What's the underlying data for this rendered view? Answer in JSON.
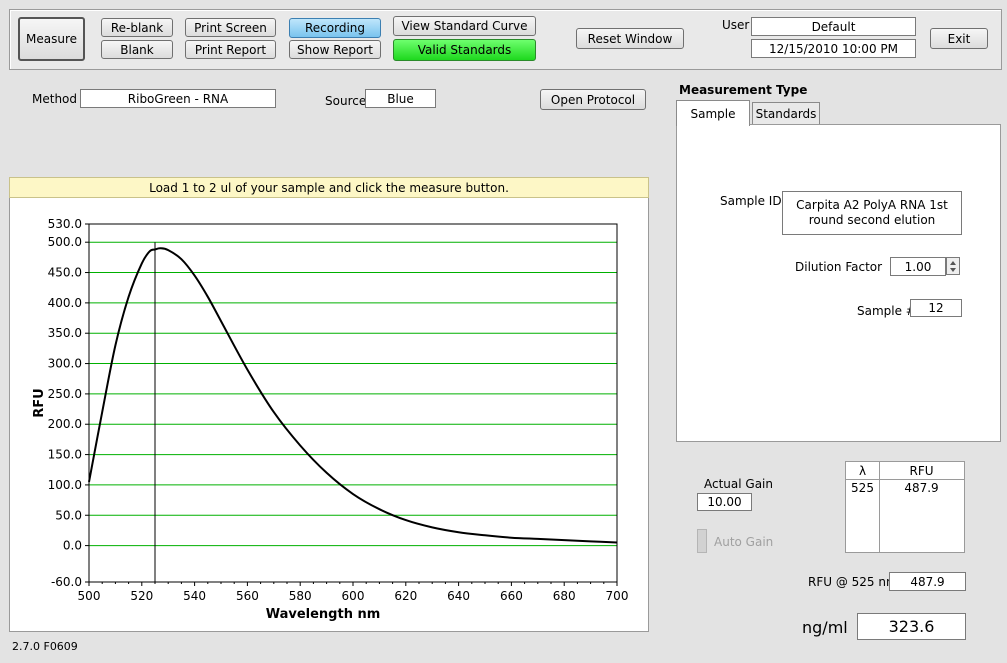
{
  "toolbar": {
    "measure": "Measure",
    "reblank": "Re-blank",
    "blank": "Blank",
    "print_screen": "Print Screen",
    "print_report": "Print Report",
    "recording": "Recording",
    "show_report": "Show Report",
    "view_standard_curve": "View Standard Curve",
    "valid_standards": "Valid Standards",
    "reset_window": "Reset Window",
    "user_label": "User",
    "user_value": "Default",
    "datetime": "12/15/2010  10:00 PM",
    "exit": "Exit"
  },
  "method": {
    "label": "Method",
    "value": "RiboGreen - RNA"
  },
  "source": {
    "label": "Source",
    "value": "Blue"
  },
  "open_protocol": "Open Protocol",
  "banner": "Load 1 to 2 ul of your sample and click the measure button.",
  "measurement_type": {
    "title": "Measurement Type",
    "tabs": [
      "Sample",
      "Standards"
    ],
    "active_tab": "Sample",
    "sample_id_label": "Sample ID",
    "sample_id_value": "Carpita A2 PolyA RNA 1st round second elution",
    "dilution_label": "Dilution Factor",
    "dilution_value": "1.00",
    "sample_no_label": "Sample #",
    "sample_no_value": "12"
  },
  "gain": {
    "actual_label": "Actual Gain",
    "actual_value": "10.00",
    "auto_label": "Auto Gain"
  },
  "rfu_table": {
    "headers": [
      "λ",
      "RFU"
    ],
    "rows": [
      [
        "525",
        "487.9"
      ]
    ]
  },
  "rfu_at": {
    "label": "RFU @ 525 nm",
    "value": "487.9"
  },
  "concentration": {
    "label": "ng/ml",
    "value": "323.6"
  },
  "version": "2.7.0 F0609",
  "colors": {
    "grid": "#00b000",
    "curve": "#000000",
    "valid_green": "#22dd22"
  },
  "chart_data": {
    "type": "line",
    "xlabel": "Wavelength  nm",
    "ylabel": "RFU",
    "xlim": [
      500,
      700
    ],
    "ylim": [
      -60,
      530
    ],
    "xticks": [
      500,
      520,
      540,
      560,
      580,
      600,
      620,
      640,
      660,
      680,
      700
    ],
    "yticks": [
      -60,
      0,
      50,
      100,
      150,
      200,
      250,
      300,
      350,
      400,
      450,
      500,
      530
    ],
    "marker_x": 525,
    "grid": true,
    "series": [
      {
        "x": [
          500,
          505,
          510,
          515,
          520,
          523,
          525,
          527,
          530,
          535,
          540,
          545,
          550,
          560,
          570,
          580,
          590,
          600,
          610,
          620,
          630,
          640,
          650,
          660,
          670,
          680,
          690,
          700
        ],
        "y": [
          105,
          220,
          330,
          410,
          465,
          485,
          488,
          490,
          487,
          472,
          445,
          410,
          370,
          290,
          220,
          165,
          120,
          85,
          60,
          42,
          30,
          22,
          17,
          13,
          11,
          9,
          7,
          5
        ]
      }
    ]
  }
}
